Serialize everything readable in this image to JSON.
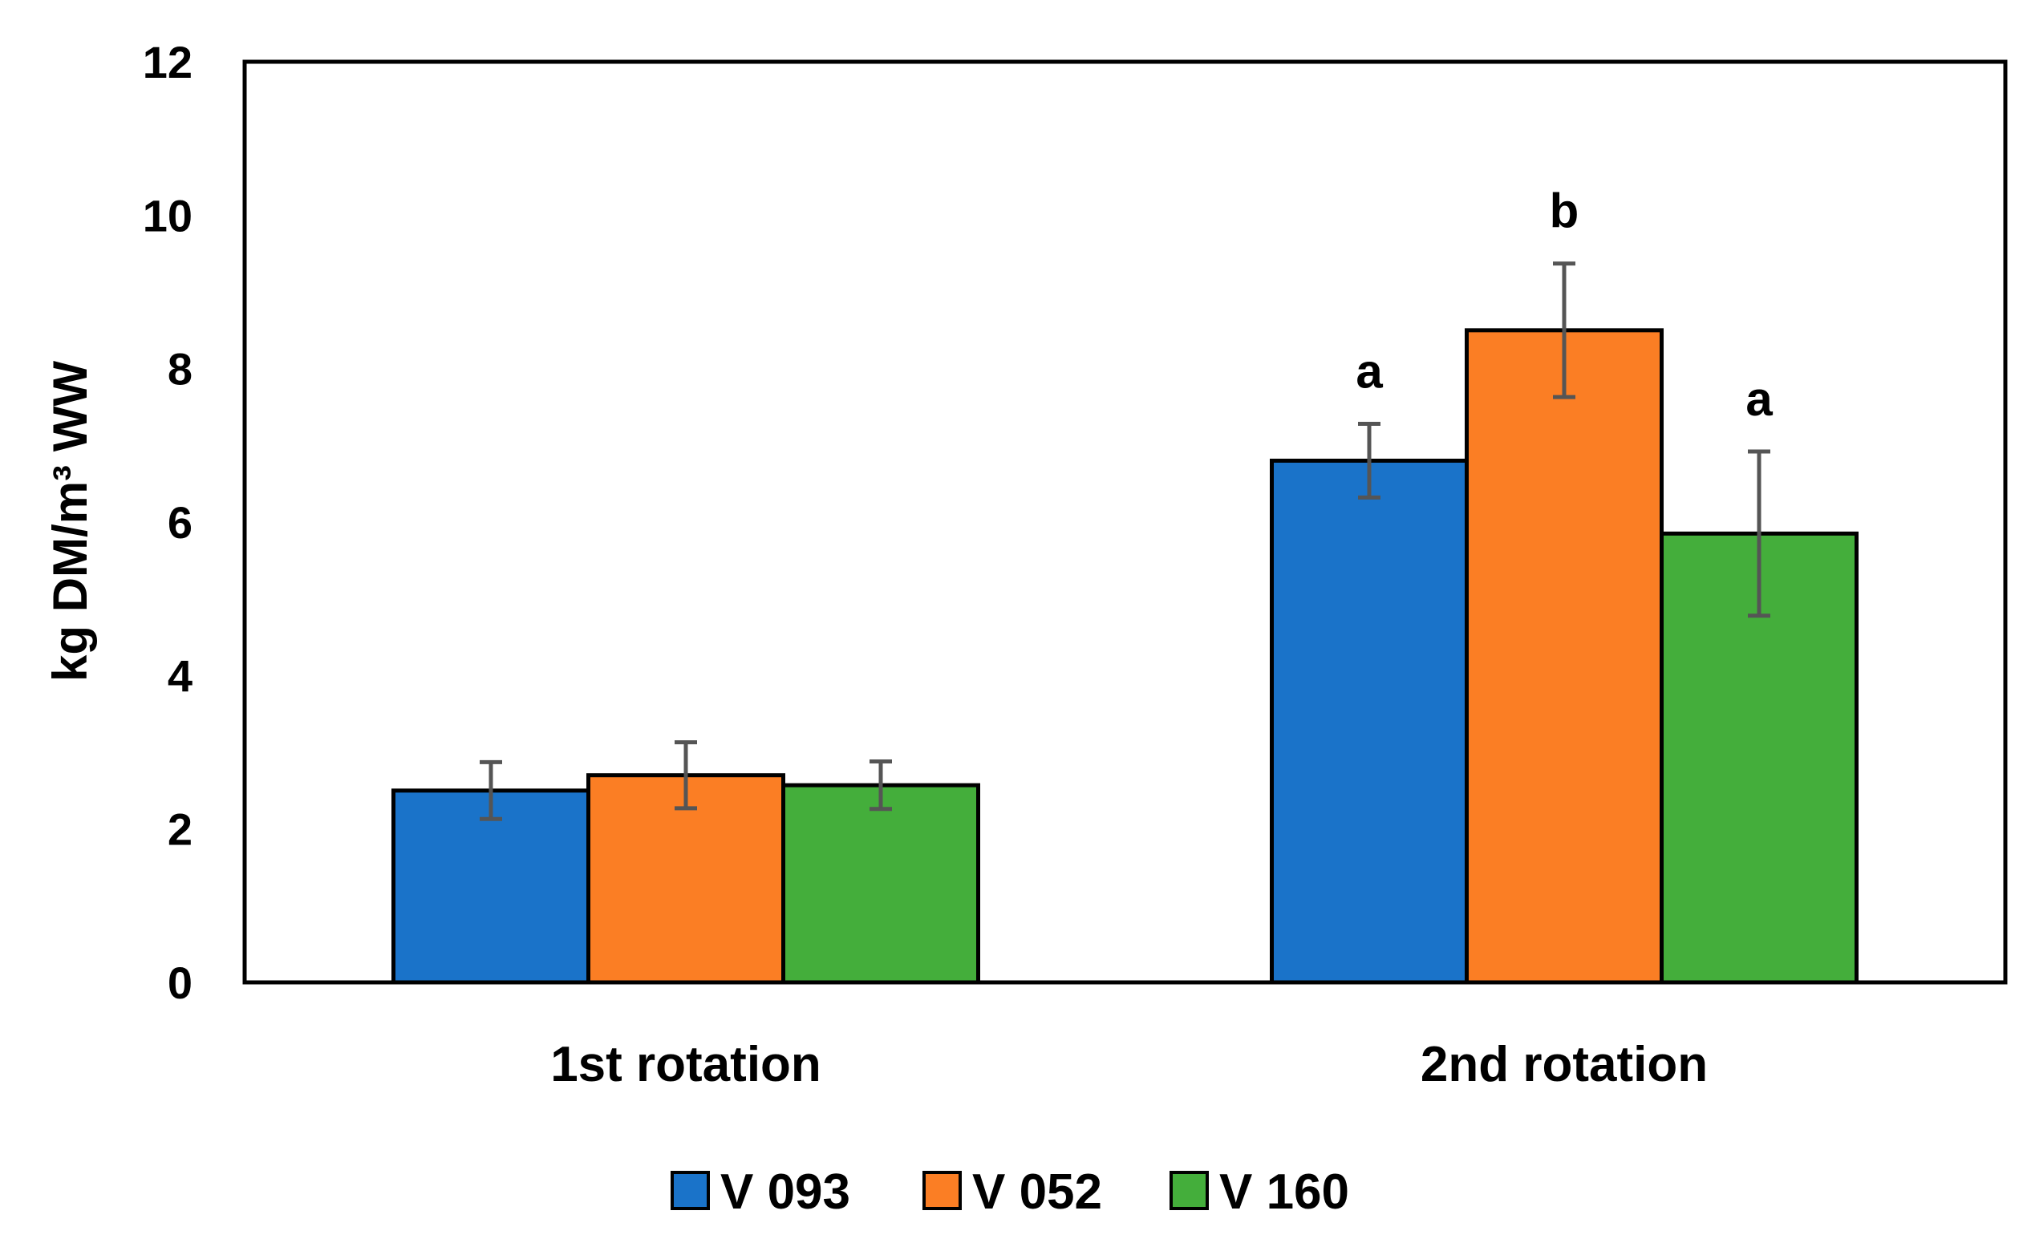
{
  "chart_data": {
    "type": "bar",
    "title": "",
    "xlabel": "",
    "ylabel": "kg DM/m³ WW",
    "ylim": [
      0,
      12
    ],
    "yticks": [
      0,
      2,
      4,
      6,
      8,
      10,
      12
    ],
    "grid": false,
    "legend_position": "bottom",
    "categories": [
      "1st rotation",
      "2nd rotation"
    ],
    "series": [
      {
        "name": "V 093",
        "color": "#1a73c9",
        "values": [
          2.5,
          6.8
        ],
        "errors": [
          0.37,
          0.48
        ],
        "labels": [
          "",
          "a"
        ]
      },
      {
        "name": "V 052",
        "color": "#fb7e24",
        "values": [
          2.7,
          8.5
        ],
        "errors": [
          0.43,
          0.87
        ],
        "labels": [
          "",
          "b"
        ]
      },
      {
        "name": "V 160",
        "color": "#44ae3b",
        "values": [
          2.57,
          5.85
        ],
        "errors": [
          0.31,
          1.07
        ],
        "labels": [
          "",
          "a"
        ]
      }
    ]
  }
}
